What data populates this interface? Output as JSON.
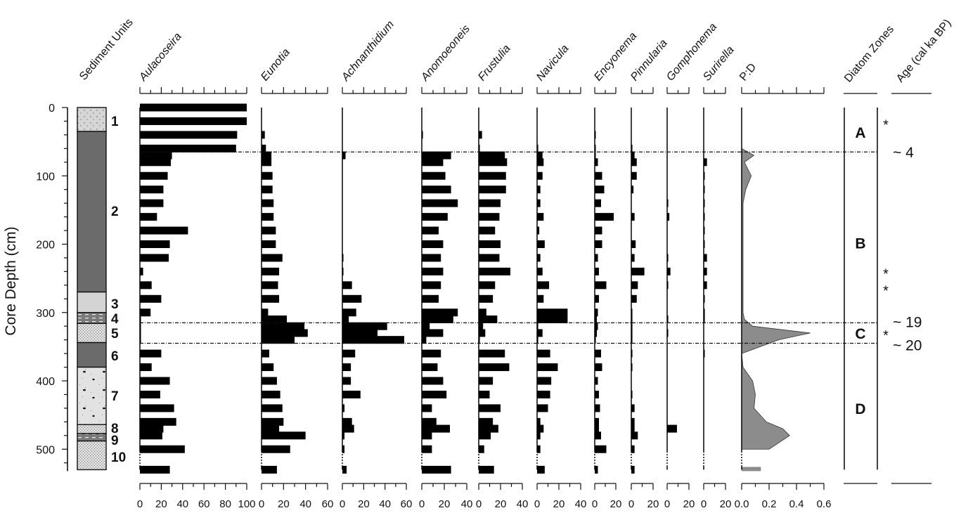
{
  "chart_data": {
    "type": "bar",
    "subtype": "stratigraphic diagram (horizontal bars vs depth)",
    "ylabel": "Core Depth (cm)",
    "ylim": [
      0,
      530
    ],
    "yticks": [
      "0",
      "100",
      "200",
      "300",
      "400",
      "500"
    ],
    "sediment": {
      "title": "Sediment Units",
      "units": [
        {
          "label": "1",
          "top": 0,
          "bottom": 35,
          "fill": "#d6d6d6",
          "pattern": "dots"
        },
        {
          "label": "2",
          "top": 35,
          "bottom": 270,
          "fill": "#6b6b6b",
          "pattern": "solid"
        },
        {
          "label": "3",
          "top": 270,
          "bottom": 300,
          "fill": "#d4d4d4",
          "pattern": "solid"
        },
        {
          "label": "4",
          "top": 300,
          "bottom": 316,
          "fill": "#7a7a7a",
          "pattern": "dashes"
        },
        {
          "label": "5",
          "top": 316,
          "bottom": 344,
          "fill": "#c4c4c4",
          "pattern": "stipple"
        },
        {
          "label": "6",
          "top": 344,
          "bottom": 380,
          "fill": "#6b6b6b",
          "pattern": "solid"
        },
        {
          "label": "7",
          "top": 380,
          "bottom": 464,
          "fill": "#e4e4e4",
          "pattern": "specks"
        },
        {
          "label": "8",
          "top": 464,
          "bottom": 477,
          "fill": "#e6e6e6",
          "pattern": "stipple"
        },
        {
          "label": "9",
          "top": 477,
          "bottom": 488,
          "fill": "#7a7a7a",
          "pattern": "dashes"
        },
        {
          "label": "10",
          "top": 488,
          "bottom": 530,
          "fill": "#d2d2d2",
          "pattern": "stipple"
        }
      ]
    },
    "depths": [
      0,
      20,
      40,
      60,
      70,
      80,
      100,
      120,
      140,
      160,
      180,
      200,
      220,
      240,
      260,
      280,
      300,
      310,
      320,
      330,
      340,
      360,
      380,
      400,
      420,
      440,
      460,
      470,
      480,
      500,
      530
    ],
    "series": [
      {
        "name": "Aulacoseira",
        "xlim": [
          0,
          100
        ],
        "ticks": [
          "0",
          "20",
          "40",
          "60",
          "80",
          "100"
        ],
        "values": [
          100,
          100,
          91,
          90,
          30,
          29,
          26,
          22,
          22,
          16,
          45,
          28,
          27,
          3,
          11,
          20,
          10,
          1,
          1,
          1,
          1,
          20,
          11,
          28,
          19,
          32,
          34,
          22,
          21,
          42,
          28
        ]
      },
      {
        "name": "Eunotia",
        "xlim": [
          0,
          60
        ],
        "ticks": [
          "0",
          "20",
          "40",
          "60"
        ],
        "values": [
          0,
          0,
          3,
          4,
          9,
          9,
          10,
          10,
          11,
          11,
          13,
          13,
          19,
          16,
          15,
          16,
          6,
          23,
          39,
          42,
          30,
          7,
          11,
          14,
          17,
          19,
          20,
          16,
          40,
          26,
          14
        ]
      },
      {
        "name": "Achnanthidium",
        "xlim": [
          0,
          60
        ],
        "ticks": [
          "0",
          "20",
          "40",
          "60"
        ],
        "values": [
          0,
          0,
          0,
          0,
          3,
          0,
          0,
          0,
          0,
          0,
          0,
          0,
          1,
          1,
          9,
          18,
          13,
          6,
          42,
          33,
          58,
          12,
          8,
          8,
          17,
          2,
          9,
          11,
          2,
          2,
          4
        ]
      },
      {
        "name": "Anomoeoneis",
        "xlim": [
          0,
          40
        ],
        "ticks": [
          "0",
          "20",
          "40"
        ],
        "values": [
          0,
          0,
          1,
          0,
          26,
          19,
          21,
          26,
          32,
          23,
          15,
          19,
          17,
          19,
          17,
          15,
          32,
          28,
          7,
          19,
          4,
          17,
          14,
          19,
          22,
          9,
          13,
          25,
          9,
          9,
          26
        ]
      },
      {
        "name": "Frustulia",
        "xlim": [
          0,
          40
        ],
        "ticks": [
          "0",
          "20",
          "40"
        ],
        "values": [
          0,
          0,
          3,
          1,
          24,
          26,
          25,
          25,
          20,
          19,
          15,
          20,
          19,
          29,
          15,
          13,
          7,
          17,
          4,
          6,
          1,
          24,
          28,
          13,
          10,
          20,
          13,
          18,
          11,
          5,
          14
        ]
      },
      {
        "name": "Navicula",
        "xlim": [
          0,
          40
        ],
        "ticks": [
          "0",
          "20",
          "40"
        ],
        "values": [
          0,
          0,
          0,
          1,
          5,
          6,
          5,
          3,
          3,
          6,
          2,
          7,
          3,
          5,
          11,
          6,
          28,
          28,
          1,
          5,
          1,
          12,
          19,
          13,
          12,
          10,
          3,
          6,
          3,
          3,
          7
        ]
      },
      {
        "name": "Encyonema",
        "xlim": [
          0,
          20
        ],
        "ticks": [
          "0",
          "20"
        ],
        "values": [
          0,
          0,
          1,
          1,
          1,
          3,
          7,
          9,
          6,
          18,
          7,
          7,
          3,
          4,
          11,
          4,
          3,
          2,
          3,
          2,
          1,
          6,
          7,
          3,
          4,
          5,
          4,
          4,
          6,
          11,
          3
        ]
      },
      {
        "name": "Pinnularia",
        "xlim": [
          0,
          20
        ],
        "ticks": [
          "0",
          "20"
        ],
        "values": [
          0,
          0,
          0,
          1,
          3,
          5,
          5,
          2,
          0,
          3,
          0,
          4,
          3,
          12,
          6,
          5,
          1,
          1,
          1,
          1,
          1,
          1,
          1,
          0,
          1,
          3,
          3,
          3,
          6,
          3,
          3
        ]
      },
      {
        "name": "Gomphonema",
        "xlim": [
          0,
          20
        ],
        "ticks": [
          "0",
          "20"
        ],
        "values": [
          0,
          0,
          0,
          0,
          0,
          0,
          0,
          0,
          1,
          2,
          0,
          0,
          1,
          3,
          1,
          0,
          0,
          1,
          0,
          1,
          0,
          0,
          0,
          0,
          0,
          0,
          0,
          9,
          0,
          0,
          0
        ]
      },
      {
        "name": "Surirella",
        "xlim": [
          0,
          20
        ],
        "ticks": [
          "0",
          "20"
        ],
        "values": [
          0,
          0,
          0,
          0,
          0,
          3,
          0.5,
          0.5,
          0.5,
          0.5,
          0.5,
          0.5,
          3,
          3,
          3,
          1,
          1,
          1,
          0,
          0,
          0,
          0.5,
          0,
          0,
          0,
          0,
          0,
          0,
          0,
          0,
          0
        ]
      }
    ],
    "ratio": {
      "name": "P:D",
      "type": "area",
      "xlim": [
        0,
        0.6
      ],
      "ticks": [
        "0.0",
        "0.2",
        "0.4",
        "0.6"
      ],
      "color": "#8c8c8c",
      "values": [
        0,
        0,
        0,
        0,
        0.09,
        0.02,
        0.07,
        0.03,
        0.01,
        0.01,
        0.01,
        0.01,
        0.01,
        0.01,
        0.01,
        0.01,
        0.01,
        0.02,
        0.08,
        0.5,
        0.27,
        0,
        0.01,
        0.08,
        0.1,
        0.09,
        0.18,
        0.3,
        0.35,
        0.2,
        0.14
      ]
    },
    "zones": {
      "title": "Diatom Zones",
      "items": [
        {
          "label": "A",
          "top": 0,
          "bottom": 65
        },
        {
          "label": "B",
          "top": 65,
          "bottom": 315
        },
        {
          "label": "C",
          "top": 315,
          "bottom": 345
        },
        {
          "label": "D",
          "top": 345,
          "bottom": 530
        }
      ],
      "boundaries": [
        65,
        315,
        345
      ]
    },
    "age": {
      "title": "Age  (cal ka BP)",
      "labels": [
        {
          "depth": 65,
          "text": "~ 4"
        },
        {
          "depth": 315,
          "text": "~ 19"
        },
        {
          "depth": 345,
          "text": "~ 20"
        }
      ],
      "asterisk_depths": [
        22,
        240,
        265,
        330
      ],
      "asterisk": "*"
    }
  }
}
